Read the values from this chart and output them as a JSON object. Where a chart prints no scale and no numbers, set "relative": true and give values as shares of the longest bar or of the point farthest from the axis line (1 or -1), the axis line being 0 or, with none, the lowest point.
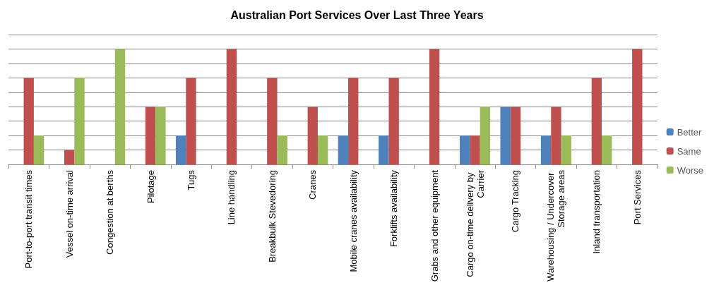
{
  "chart_data": {
    "type": "bar",
    "title": "Australian Port Services Over Last Three Years",
    "relative": true,
    "grid": "y",
    "legend": "right",
    "categories": [
      "Port-to-port transit times",
      "Vessel on-time arrival",
      "Congestion at berths",
      "Pilotage",
      "Tugs",
      "Line handling",
      "Breakbulk Stevedoring",
      "Cranes",
      "Mobile cranes availability",
      "Forklifts availability",
      "Grabs and other equipment",
      "Cargo on-time delivery by Carrier",
      "Cargo Tracking",
      "Warehousing / Undercover Storage areas",
      "Inland transportation",
      "Port Services"
    ],
    "series": [
      {
        "name": "Better",
        "color": "#4f81bd",
        "values": [
          0,
          0,
          0,
          0,
          0.25,
          0,
          0,
          0,
          0.25,
          0.25,
          0,
          0.25,
          0.5,
          0.25,
          0,
          0
        ]
      },
      {
        "name": "Same",
        "color": "#c0504d",
        "values": [
          0.75,
          0.125,
          0,
          0.5,
          0.75,
          1,
          0.75,
          0.5,
          0.75,
          0.75,
          1,
          0.25,
          0.5,
          0.5,
          0.75,
          1
        ]
      },
      {
        "name": "Worse",
        "color": "#9bbb59",
        "values": [
          0.25,
          0.75,
          1,
          0.5,
          0,
          0,
          0.25,
          0.25,
          0,
          0,
          0,
          0.5,
          0,
          0.25,
          0.25,
          0
        ]
      }
    ]
  }
}
